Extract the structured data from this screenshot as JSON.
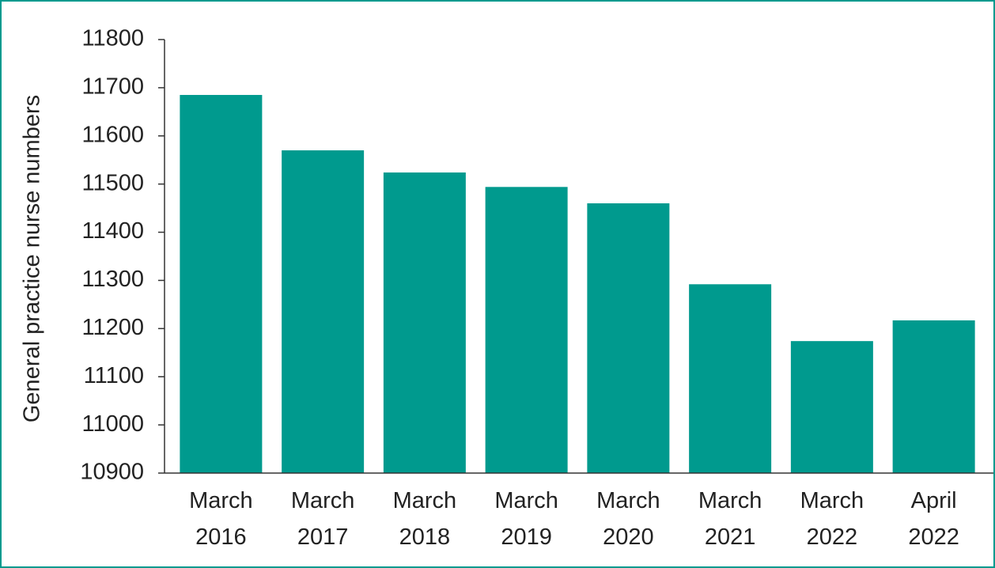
{
  "chart_data": {
    "type": "bar",
    "y_label": "General practice nurse numbers",
    "categories": [
      "March 2016",
      "March 2017",
      "March 2018",
      "March 2019",
      "March 2020",
      "March 2021",
      "March 2022",
      "April 2022"
    ],
    "values": [
      11685,
      11570,
      11524,
      11494,
      11460,
      11292,
      11174,
      11217
    ],
    "color": "#009a8e",
    "ylim": [
      10900,
      11800
    ],
    "yticks": [
      10900,
      11000,
      11100,
      11200,
      11300,
      11400,
      11500,
      11600,
      11700,
      11800
    ],
    "grid": false
  }
}
